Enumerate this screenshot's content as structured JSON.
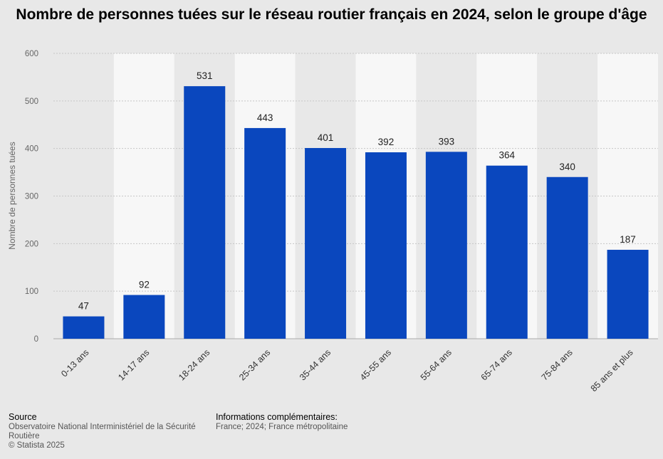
{
  "chart_data": {
    "type": "bar",
    "title": "Nombre de personnes tuées sur le réseau routier français en 2024, selon le groupe d'âge",
    "xlabel": "",
    "ylabel": "Nombre de personnes tuées",
    "categories": [
      "0-13 ans",
      "14-17 ans",
      "18-24 ans",
      "25-34 ans",
      "35-44 ans",
      "45-55 ans",
      "55-64 ans",
      "65-74 ans",
      "75-84 ans",
      "85 ans et plus"
    ],
    "values": [
      47,
      92,
      531,
      443,
      401,
      392,
      393,
      364,
      340,
      187
    ],
    "ylim": [
      0,
      600
    ],
    "yticks": [
      0,
      100,
      200,
      300,
      400,
      500,
      600
    ],
    "grid": true,
    "legend": "none",
    "bar_color": "#0a47be"
  },
  "footer": {
    "source_heading": "Source",
    "source_lines": [
      "Observatoire National Interministériel de la Sécurité",
      "Routière",
      "© Statista 2025"
    ],
    "info_heading": "Informations complémentaires:",
    "info_text": "France; 2024; France métropolitaine"
  }
}
